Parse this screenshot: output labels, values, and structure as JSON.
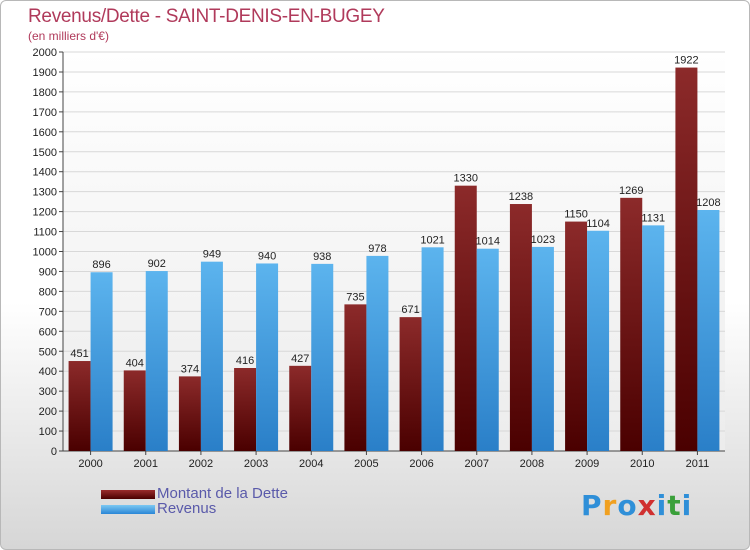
{
  "title": "Revenus/Dette - SAINT-DENIS-EN-BUGEY",
  "subtitle": "(en milliers d'€)",
  "legend": {
    "dette": "Montant de la Dette",
    "revenus": "Revenus"
  },
  "logo": {
    "letters": [
      "P",
      "r",
      "o",
      "x",
      "i",
      "t",
      "i"
    ],
    "colors": [
      "#2f8fd8",
      "#f0a020",
      "#2f8fd8",
      "#d03030",
      "#2f8fd8",
      "#3aa03a",
      "#2f8fd8"
    ]
  },
  "chart_data": {
    "type": "bar",
    "title": "Revenus/Dette - SAINT-DENIS-EN-BUGEY",
    "subtitle": "(en milliers d'€)",
    "categories": [
      "2000",
      "2001",
      "2002",
      "2003",
      "2004",
      "2005",
      "2006",
      "2007",
      "2008",
      "2009",
      "2010",
      "2011"
    ],
    "series": [
      {
        "name": "Montant de la Dette",
        "color": "#6e0f0f",
        "values": [
          451,
          404,
          374,
          416,
          427,
          735,
          671,
          1330,
          1238,
          1150,
          1269,
          1922
        ]
      },
      {
        "name": "Revenus",
        "color": "#4aa3e6",
        "values": [
          896,
          902,
          949,
          940,
          938,
          978,
          1021,
          1014,
          1023,
          1104,
          1131,
          1208
        ]
      }
    ],
    "ylim": [
      0,
      2000
    ],
    "yticks": [
      0,
      100,
      200,
      300,
      400,
      500,
      600,
      700,
      800,
      900,
      1000,
      1100,
      1200,
      1300,
      1400,
      1500,
      1600,
      1700,
      1800,
      1900,
      2000
    ],
    "grid": true,
    "legend_position": "bottom-left"
  }
}
